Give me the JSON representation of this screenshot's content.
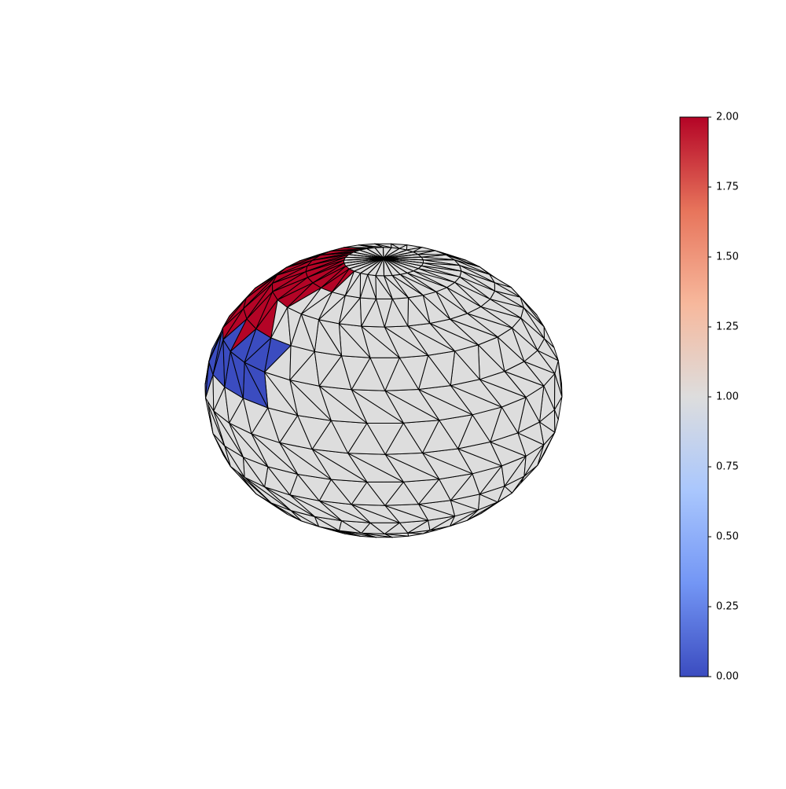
{
  "chart_data": {
    "type": "trisurf",
    "colorbar": {
      "lim": [
        0,
        2
      ],
      "ticks": [
        {
          "value": 0,
          "label": "0.00"
        },
        {
          "value": 0.25,
          "label": "0.25"
        },
        {
          "value": 0.5,
          "label": "0.50"
        },
        {
          "value": 0.75,
          "label": "0.75"
        },
        {
          "value": 1,
          "label": "1.00"
        },
        {
          "value": 1.25,
          "label": "1.25"
        },
        {
          "value": 1.5,
          "label": "1.50"
        },
        {
          "value": 1.75,
          "label": "1.75"
        },
        {
          "value": 2,
          "label": "2.00"
        }
      ],
      "colors": [
        "#3b4cc0",
        "#7396f5",
        "#aac7fd",
        "#dddddd",
        "#f7b89c",
        "#e7745b",
        "#b40426"
      ]
    },
    "edge_color": "#000000"
  }
}
